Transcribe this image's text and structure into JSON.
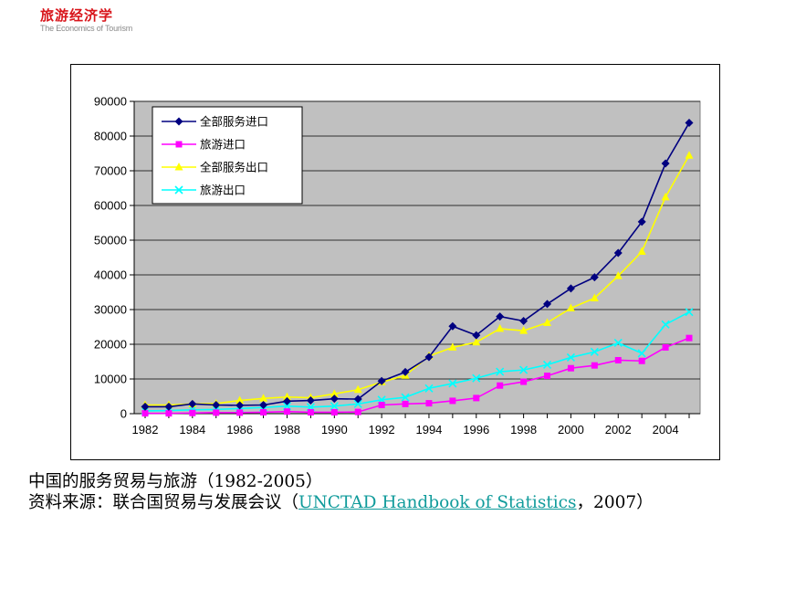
{
  "logo": {
    "title": "旅游经济学",
    "subtitle": "The Economics of Tourism"
  },
  "caption": {
    "line1": "中国的服务贸易与旅游（1982-2005）",
    "line2_prefix": "资料来源：联合国贸易与发展会议（",
    "line2_link": "UNCTAD Handbook of Statistics",
    "line2_suffix": "，2007）"
  },
  "chart_data": {
    "type": "line",
    "title": "",
    "xlabel": "",
    "ylabel": "",
    "ylim": [
      0,
      90000
    ],
    "yticks": [
      0,
      10000,
      20000,
      30000,
      40000,
      50000,
      60000,
      70000,
      80000,
      90000
    ],
    "xlim": [
      1982,
      2005
    ],
    "xticks": [
      1982,
      1984,
      1986,
      1988,
      1990,
      1992,
      1994,
      1996,
      1998,
      2000,
      2002,
      2004
    ],
    "grid": true,
    "plot_background": "#c0c0c0",
    "legend_position": "top-left",
    "x": [
      1982,
      1983,
      1984,
      1985,
      1986,
      1987,
      1988,
      1989,
      1990,
      1991,
      1992,
      1993,
      1994,
      1995,
      1996,
      1997,
      1998,
      1999,
      2000,
      2001,
      2002,
      2003,
      2004,
      2005
    ],
    "series": [
      {
        "name": "全部服务进口",
        "color": "#000080",
        "marker": "diamond",
        "values": [
          2000,
          2000,
          2800,
          2500,
          2400,
          2500,
          3600,
          3800,
          4300,
          4200,
          9400,
          12000,
          16300,
          25200,
          22600,
          28000,
          26700,
          31600,
          36100,
          39300,
          46300,
          55300,
          72100,
          83800
        ]
      },
      {
        "name": "旅游进口",
        "color": "#ff00ff",
        "marker": "square",
        "values": [
          100,
          100,
          200,
          300,
          300,
          400,
          600,
          400,
          400,
          500,
          2500,
          2800,
          3000,
          3700,
          4500,
          8100,
          9200,
          10900,
          13100,
          13900,
          15400,
          15200,
          19100,
          21800
        ]
      },
      {
        "name": "全部服务出口",
        "color": "#ffff00",
        "marker": "triangle",
        "values": [
          2500,
          2500,
          2800,
          2900,
          3800,
          4400,
          4800,
          4600,
          5700,
          6900,
          9100,
          11000,
          16600,
          19100,
          20600,
          24500,
          23900,
          26200,
          30400,
          33300,
          39700,
          46700,
          62400,
          74400
        ]
      },
      {
        "name": "旅游出口",
        "color": "#00ffff",
        "marker": "x",
        "values": [
          800,
          900,
          1100,
          1200,
          1500,
          1800,
          2200,
          1900,
          2200,
          2800,
          4000,
          4700,
          7300,
          8700,
          10200,
          12100,
          12600,
          14100,
          16200,
          17800,
          20400,
          17400,
          25700,
          29300
        ]
      }
    ]
  }
}
